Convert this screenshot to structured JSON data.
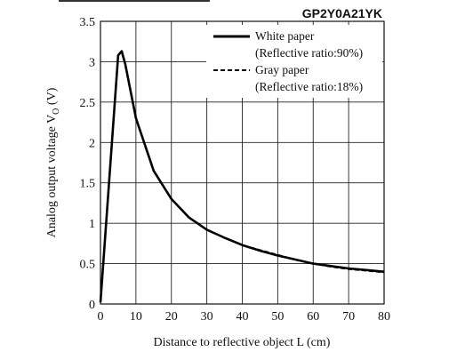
{
  "chart_data": {
    "type": "line",
    "part_number": "GP2Y0A21YK",
    "xlabel": "Distance to reflective object L (cm)",
    "ylabel_main": "Analog output voltage V",
    "ylabel_sub": "O",
    "ylabel_unit": " (V)",
    "xlim": [
      0,
      80
    ],
    "ylim": [
      0,
      3.5
    ],
    "x_ticks": [
      0,
      10,
      20,
      30,
      40,
      50,
      60,
      70,
      80
    ],
    "x_tick_labels": [
      "0",
      "10",
      "20",
      "30",
      "40",
      "50",
      "60",
      "70",
      "80"
    ],
    "y_ticks": [
      0,
      0.5,
      1,
      1.5,
      2,
      2.5,
      3,
      3.5
    ],
    "y_tick_labels": [
      "0",
      "0.5",
      "1",
      "1.5",
      "2",
      "2.5",
      "3",
      "3.5"
    ],
    "grid": true,
    "legend_position": "top-right",
    "series": [
      {
        "name": "White paper",
        "name_line2": "(Reflective ratio:90%)",
        "style": "solid",
        "x": [
          0,
          5,
          6,
          7,
          10,
          15,
          20,
          25,
          30,
          35,
          40,
          45,
          50,
          55,
          60,
          65,
          70,
          75,
          80
        ],
        "y": [
          0.02,
          3.08,
          3.13,
          2.97,
          2.3,
          1.65,
          1.3,
          1.07,
          0.92,
          0.82,
          0.73,
          0.66,
          0.6,
          0.55,
          0.5,
          0.47,
          0.44,
          0.42,
          0.4
        ]
      },
      {
        "name": "Gray paper",
        "name_line2": "(Reflective ratio:18%)",
        "style": "dashed",
        "x": [
          0,
          5,
          6,
          7,
          10,
          15,
          20,
          25,
          30,
          35,
          40,
          45,
          50,
          55,
          60,
          65,
          70,
          75,
          80
        ],
        "y": [
          0.02,
          3.08,
          3.13,
          2.97,
          2.3,
          1.65,
          1.3,
          1.07,
          0.92,
          0.82,
          0.73,
          0.67,
          0.61,
          0.55,
          0.5,
          0.46,
          0.43,
          0.41,
          0.39
        ]
      }
    ]
  }
}
